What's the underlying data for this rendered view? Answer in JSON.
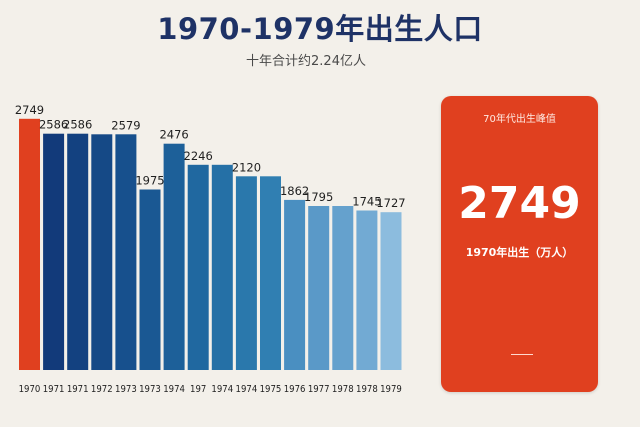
{
  "title": "1970-1979年出生人口",
  "subtitle": "十年合计约2.24亿人",
  "highlight": {
    "label": "70年代出生峰值",
    "value": "2749",
    "caption": "1970年出生（万人）",
    "color": "#e0401f"
  },
  "chart_data": {
    "type": "bar",
    "title": "1970-1979年出生人口",
    "subtitle": "十年合计约2.24亿人",
    "categories": [
      "1970",
      "1971",
      "1971",
      "1972",
      "1973",
      "1973",
      "1974",
      "197",
      "1974",
      "1974",
      "1975",
      "1976",
      "1977",
      "1978",
      "1978",
      "1979"
    ],
    "values": [
      2749,
      2586,
      2586,
      2579,
      2579,
      1975,
      2476,
      2246,
      2246,
      2120,
      2120,
      1862,
      1795,
      1795,
      1745,
      1727
    ],
    "value_labels": [
      "2749",
      "2586",
      "2586",
      "",
      "2579",
      "1975",
      "2476",
      "2246",
      "",
      "2120",
      "",
      "1862",
      "1795",
      "",
      "1745",
      "1727"
    ],
    "x_tick_labels": [
      "1970",
      "1971",
      "1971",
      "1972",
      "1973",
      "1973",
      "1974",
      "197",
      "1974",
      "1974",
      "1975",
      "1976",
      "1977",
      "1978",
      "1978",
      "1979"
    ],
    "ylim": [
      0,
      2900
    ],
    "colors": [
      "#e0401f",
      "#123a7a",
      "#134180",
      "#154986",
      "#17508d",
      "#1a5893",
      "#1d6099",
      "#2068a0",
      "#2570a6",
      "#2a78ac",
      "#307fb2",
      "#4a8fc1",
      "#5a99c8",
      "#65a1cd",
      "#72aad3",
      "#8cbcde"
    ],
    "grid": false,
    "legend": "none"
  }
}
